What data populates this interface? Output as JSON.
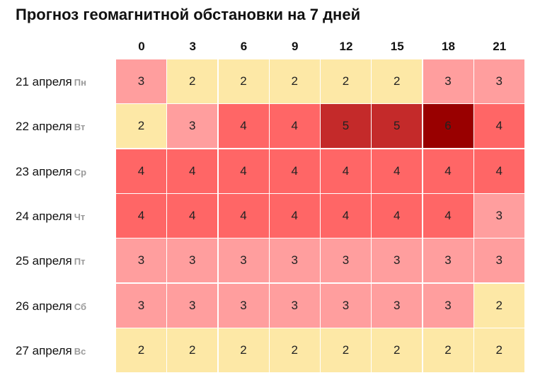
{
  "chart_data": {
    "type": "heatmap",
    "title": "Прогноз геомагнитной обстановки на 7 дней",
    "x": [
      "0",
      "3",
      "6",
      "9",
      "12",
      "15",
      "18",
      "21"
    ],
    "rows": [
      {
        "date": "21 апреля",
        "day": "Пн",
        "values": [
          3,
          2,
          2,
          2,
          2,
          2,
          3,
          3
        ]
      },
      {
        "date": "22 апреля",
        "day": "Вт",
        "values": [
          2,
          3,
          4,
          4,
          5,
          5,
          6,
          4
        ]
      },
      {
        "date": "23 апреля",
        "day": "Ср",
        "values": [
          4,
          4,
          4,
          4,
          4,
          4,
          4,
          4
        ]
      },
      {
        "date": "24 апреля",
        "day": "Чт",
        "values": [
          4,
          4,
          4,
          4,
          4,
          4,
          4,
          3
        ]
      },
      {
        "date": "25 апреля",
        "day": "Пт",
        "values": [
          3,
          3,
          3,
          3,
          3,
          3,
          3,
          3
        ]
      },
      {
        "date": "26 апреля",
        "day": "Сб",
        "values": [
          3,
          3,
          3,
          3,
          3,
          3,
          3,
          2
        ]
      },
      {
        "date": "27 апреля",
        "day": "Вс",
        "values": [
          2,
          2,
          2,
          2,
          2,
          2,
          2,
          2
        ]
      }
    ],
    "color_scale": {
      "2": "#fde8a6",
      "3": "#ff9e9e",
      "4": "#ff6666",
      "5": "#c42a2a",
      "6": "#990000"
    }
  }
}
